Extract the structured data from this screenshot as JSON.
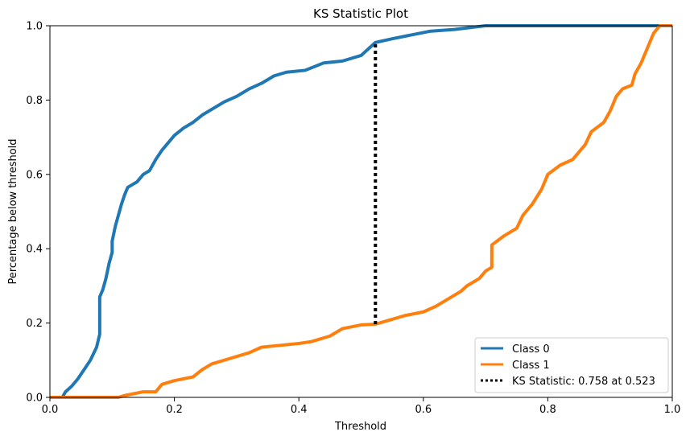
{
  "chart_data": {
    "type": "line",
    "title": "KS Statistic Plot",
    "xlabel": "Threshold",
    "ylabel": "Percentage below threshold",
    "xlim": [
      0.0,
      1.0
    ],
    "ylim": [
      0.0,
      1.0
    ],
    "xticks": [
      "0.0",
      "0.2",
      "0.4",
      "0.6",
      "0.8",
      "1.0"
    ],
    "yticks": [
      "0.0",
      "0.2",
      "0.4",
      "0.6",
      "0.8",
      "1.0"
    ],
    "grid": false,
    "legend_position": "lower-right",
    "series": [
      {
        "name": "Class 0",
        "color": "#1f77b4",
        "points": [
          [
            0.0,
            0.0
          ],
          [
            0.02,
            0.0
          ],
          [
            0.025,
            0.015
          ],
          [
            0.035,
            0.03
          ],
          [
            0.045,
            0.05
          ],
          [
            0.055,
            0.075
          ],
          [
            0.065,
            0.1
          ],
          [
            0.075,
            0.135
          ],
          [
            0.08,
            0.17
          ],
          [
            0.08,
            0.27
          ],
          [
            0.085,
            0.29
          ],
          [
            0.09,
            0.32
          ],
          [
            0.095,
            0.36
          ],
          [
            0.1,
            0.39
          ],
          [
            0.1,
            0.42
          ],
          [
            0.105,
            0.46
          ],
          [
            0.115,
            0.52
          ],
          [
            0.12,
            0.545
          ],
          [
            0.125,
            0.565
          ],
          [
            0.14,
            0.58
          ],
          [
            0.15,
            0.6
          ],
          [
            0.16,
            0.61
          ],
          [
            0.17,
            0.64
          ],
          [
            0.18,
            0.665
          ],
          [
            0.19,
            0.685
          ],
          [
            0.2,
            0.705
          ],
          [
            0.215,
            0.725
          ],
          [
            0.23,
            0.74
          ],
          [
            0.245,
            0.76
          ],
          [
            0.26,
            0.775
          ],
          [
            0.28,
            0.795
          ],
          [
            0.3,
            0.81
          ],
          [
            0.32,
            0.83
          ],
          [
            0.34,
            0.845
          ],
          [
            0.36,
            0.865
          ],
          [
            0.38,
            0.875
          ],
          [
            0.41,
            0.88
          ],
          [
            0.44,
            0.9
          ],
          [
            0.47,
            0.905
          ],
          [
            0.5,
            0.92
          ],
          [
            0.523,
            0.955
          ],
          [
            0.55,
            0.965
          ],
          [
            0.58,
            0.975
          ],
          [
            0.61,
            0.985
          ],
          [
            0.65,
            0.99
          ],
          [
            0.7,
            1.0
          ],
          [
            0.88,
            1.0
          ],
          [
            1.0,
            1.0
          ]
        ]
      },
      {
        "name": "Class 1",
        "color": "#ff7f0e",
        "points": [
          [
            0.0,
            0.0
          ],
          [
            0.11,
            0.0
          ],
          [
            0.12,
            0.005
          ],
          [
            0.135,
            0.01
          ],
          [
            0.15,
            0.015
          ],
          [
            0.17,
            0.015
          ],
          [
            0.18,
            0.035
          ],
          [
            0.2,
            0.045
          ],
          [
            0.23,
            0.055
          ],
          [
            0.245,
            0.075
          ],
          [
            0.26,
            0.09
          ],
          [
            0.29,
            0.105
          ],
          [
            0.32,
            0.12
          ],
          [
            0.34,
            0.135
          ],
          [
            0.37,
            0.14
          ],
          [
            0.4,
            0.145
          ],
          [
            0.42,
            0.15
          ],
          [
            0.45,
            0.165
          ],
          [
            0.47,
            0.185
          ],
          [
            0.5,
            0.195
          ],
          [
            0.523,
            0.197
          ],
          [
            0.55,
            0.21
          ],
          [
            0.57,
            0.22
          ],
          [
            0.6,
            0.23
          ],
          [
            0.62,
            0.245
          ],
          [
            0.64,
            0.265
          ],
          [
            0.66,
            0.285
          ],
          [
            0.67,
            0.3
          ],
          [
            0.69,
            0.32
          ],
          [
            0.7,
            0.34
          ],
          [
            0.71,
            0.35
          ],
          [
            0.71,
            0.41
          ],
          [
            0.73,
            0.435
          ],
          [
            0.75,
            0.455
          ],
          [
            0.76,
            0.49
          ],
          [
            0.775,
            0.52
          ],
          [
            0.79,
            0.56
          ],
          [
            0.8,
            0.6
          ],
          [
            0.82,
            0.625
          ],
          [
            0.84,
            0.64
          ],
          [
            0.86,
            0.68
          ],
          [
            0.87,
            0.715
          ],
          [
            0.89,
            0.74
          ],
          [
            0.9,
            0.77
          ],
          [
            0.91,
            0.81
          ],
          [
            0.92,
            0.83
          ],
          [
            0.935,
            0.84
          ],
          [
            0.94,
            0.87
          ],
          [
            0.95,
            0.9
          ],
          [
            0.96,
            0.94
          ],
          [
            0.97,
            0.98
          ],
          [
            0.98,
            1.0
          ],
          [
            1.0,
            1.0
          ]
        ]
      }
    ],
    "ks_statistic": {
      "label": "KS Statistic: 0.758 at 0.523",
      "x": 0.523,
      "y_low": 0.197,
      "y_high": 0.955,
      "color": "#000000",
      "style": "dotted"
    }
  }
}
